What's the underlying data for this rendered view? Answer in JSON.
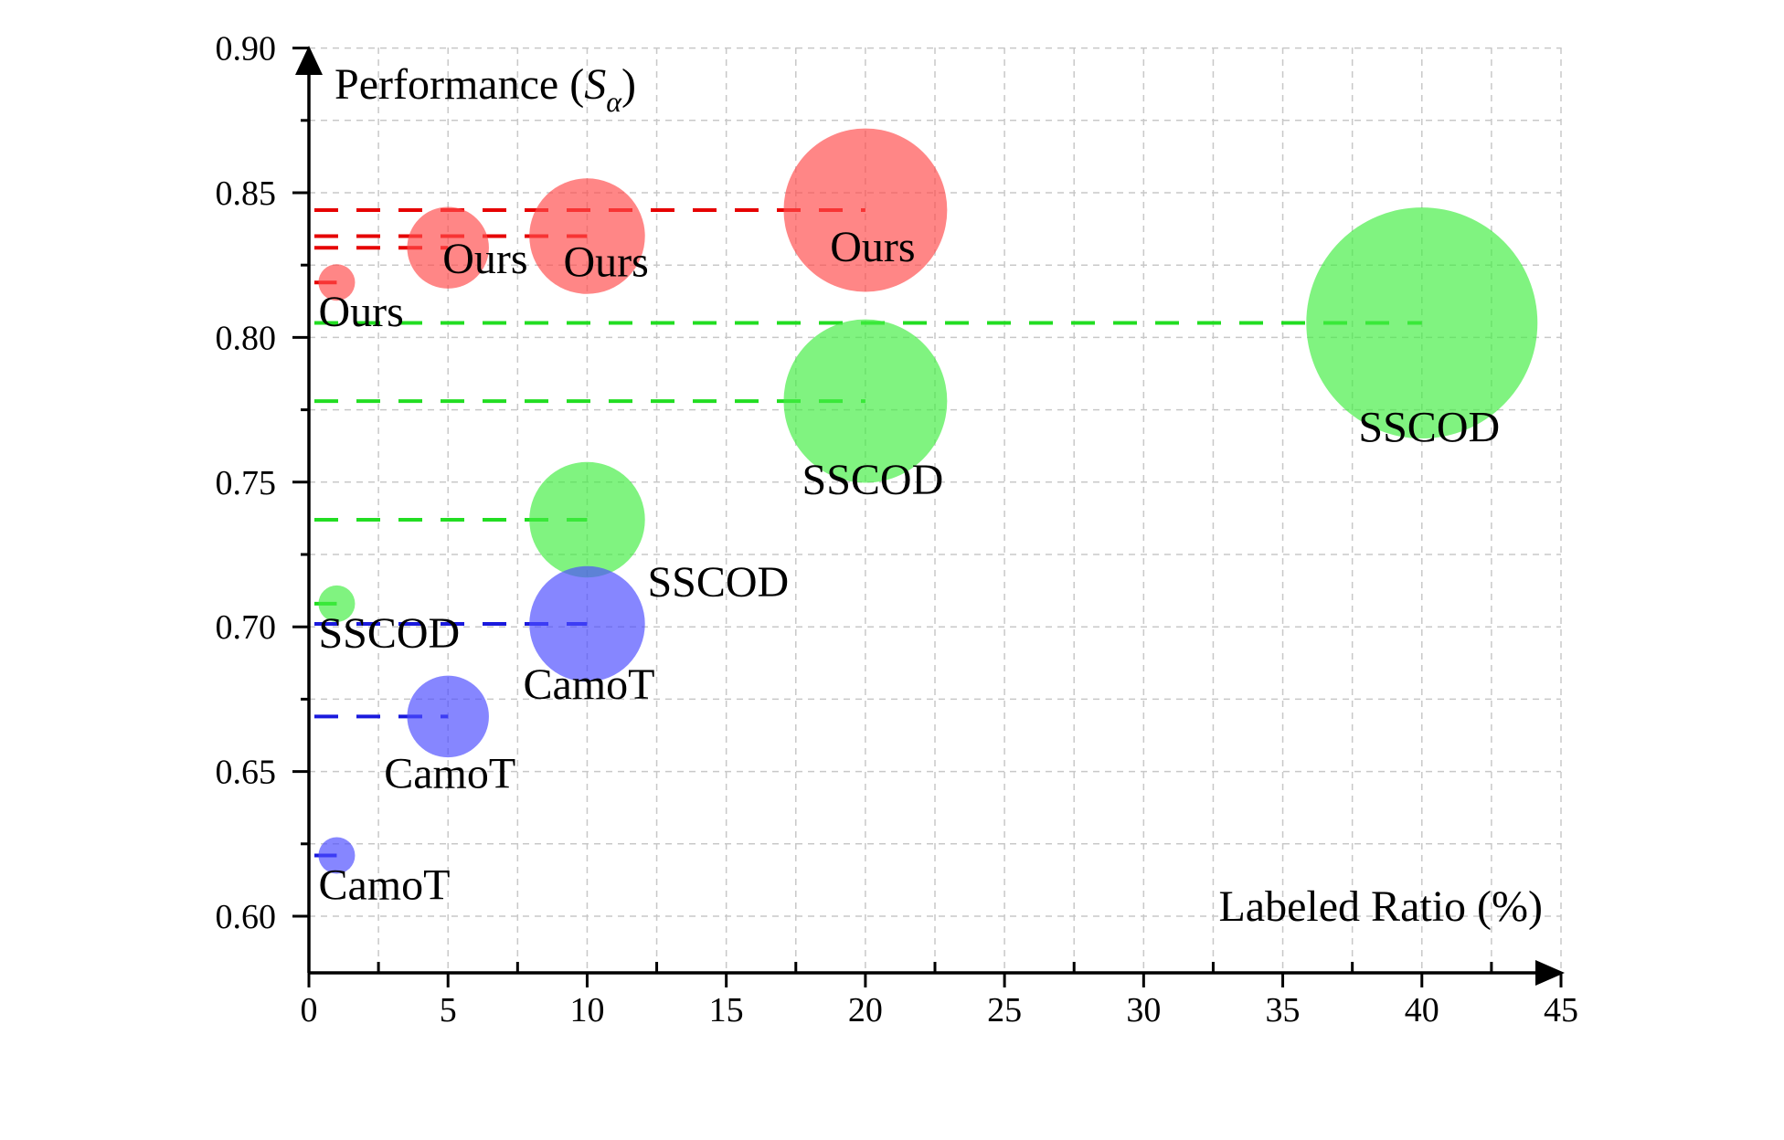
{
  "chart_data": {
    "type": "scatter",
    "subtype": "bubble",
    "title": "",
    "ylabel": "Performance (Sα)",
    "ylabel_parts": {
      "prefix": "Performance (",
      "symbol": "S",
      "subscript": "α",
      "suffix": ")"
    },
    "xlabel": "Labeled Ratio (%)",
    "xlim": [
      0,
      45
    ],
    "ylim": [
      0.58,
      0.9
    ],
    "xticks": [
      "0",
      "5",
      "10",
      "15",
      "20",
      "25",
      "30",
      "35",
      "40",
      "45"
    ],
    "xtick_values": [
      0,
      5,
      10,
      15,
      20,
      25,
      30,
      35,
      40,
      45
    ],
    "yticks": [
      "0.60",
      "0.65",
      "0.70",
      "0.75",
      "0.80",
      "0.85",
      "0.90"
    ],
    "ytick_values": [
      0.6,
      0.65,
      0.7,
      0.75,
      0.8,
      0.85,
      0.9
    ],
    "grid": true,
    "series": [
      {
        "name": "Ours",
        "color": "#ff4d4d",
        "line_color": "#e60000",
        "points": [
          {
            "x": 1,
            "y": 0.819,
            "size": 1,
            "label": "Ours"
          },
          {
            "x": 5,
            "y": 0.831,
            "size": 5,
            "label": "Ours"
          },
          {
            "x": 10,
            "y": 0.835,
            "size": 10,
            "label": "Ours"
          },
          {
            "x": 20,
            "y": 0.844,
            "size": 20,
            "label": "Ours"
          }
        ]
      },
      {
        "name": "SSCOD",
        "color": "#44ee44",
        "line_color": "#22dd22",
        "points": [
          {
            "x": 1,
            "y": 0.708,
            "size": 1,
            "label": "SSCOD"
          },
          {
            "x": 10,
            "y": 0.737,
            "size": 10,
            "label": "SSCOD"
          },
          {
            "x": 20,
            "y": 0.778,
            "size": 20,
            "label": "SSCOD"
          },
          {
            "x": 40,
            "y": 0.805,
            "size": 40,
            "label": "SSCOD"
          }
        ]
      },
      {
        "name": "CamoT",
        "color": "#4d4dff",
        "line_color": "#1a1add",
        "points": [
          {
            "x": 1,
            "y": 0.621,
            "size": 1,
            "label": "CamoT"
          },
          {
            "x": 5,
            "y": 0.669,
            "size": 5,
            "label": "CamoT"
          },
          {
            "x": 10,
            "y": 0.701,
            "size": 10,
            "label": "CamoT"
          }
        ]
      }
    ]
  }
}
